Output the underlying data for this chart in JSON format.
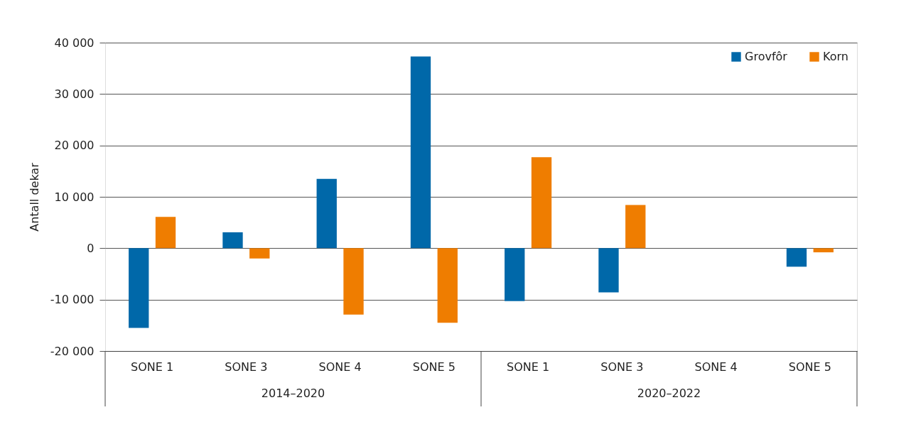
{
  "chart_data": {
    "type": "bar",
    "categories": [
      "SONE 1",
      "SONE 3",
      "SONE 4",
      "SONE 5",
      "SONE 1",
      "SONE 3",
      "SONE 4",
      "SONE 5"
    ],
    "series": [
      {
        "name": "Grovfôr",
        "color": "#0068a9",
        "values": [
          -15500,
          3100,
          13500,
          37300,
          -10300,
          -8600,
          null,
          -3600
        ]
      },
      {
        "name": "Korn",
        "color": "#ef7d00",
        "values": [
          6100,
          -2000,
          -12900,
          -14500,
          17700,
          8400,
          null,
          -800
        ]
      }
    ],
    "ylabel": "Antall dekar",
    "annotations": [
      "2014–2020",
      "2020–2022"
    ],
    "ylim": [
      -20000,
      40000
    ],
    "yticks": [
      -20000,
      -10000,
      0,
      10000,
      20000,
      30000,
      40000
    ],
    "grid": "y",
    "legend": "top right"
  }
}
